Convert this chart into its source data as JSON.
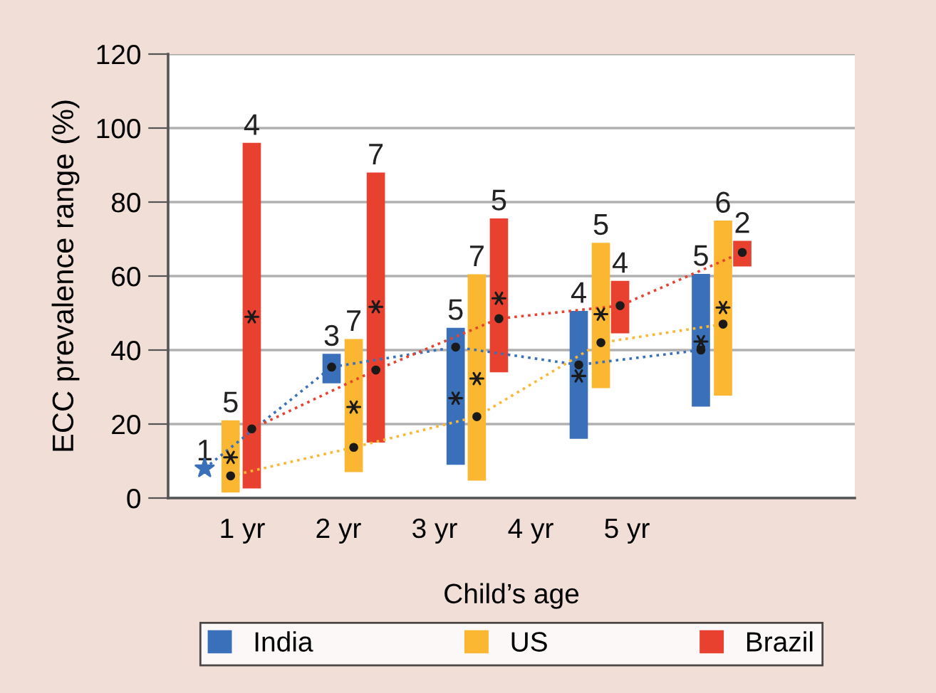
{
  "chart_data": {
    "type": "bar",
    "xlabel": "Child’s age",
    "ylabel": "ECC prevalence range (%)",
    "xlim": [
      0.23,
      7.37
    ],
    "xticks": [
      {
        "value": 1,
        "label": "1 yr"
      },
      {
        "value": 2,
        "label": "2 yr"
      },
      {
        "value": 3,
        "label": "3 yr"
      },
      {
        "value": 4,
        "label": "4 yr"
      },
      {
        "value": 5,
        "label": "5 yr"
      }
    ],
    "ylim": [
      0,
      120
    ],
    "yticks": [
      0,
      20,
      40,
      60,
      80,
      100,
      120
    ],
    "grid": "y",
    "legend": "bottom",
    "series": [
      {
        "name": "India",
        "color": "#3a70b9",
        "x": [
          1.93,
          3.22,
          4.5,
          5.77
        ],
        "base": [
          31,
          9,
          16,
          24.7
        ],
        "values": [
          8,
          37,
          34.6,
          35.9
        ]
      },
      {
        "name": "US",
        "color": "#fbb731",
        "x": [
          0.88,
          2.16,
          3.44,
          4.73,
          6.0
        ],
        "base": [
          1.5,
          7,
          4.7,
          29.7,
          27.7
        ],
        "values": [
          19.5,
          36,
          55.8,
          39.3,
          47.3
        ]
      },
      {
        "name": "Brazil",
        "color": "#e84130",
        "x": [
          1.1,
          2.39,
          3.67,
          4.93,
          6.2
        ],
        "base": [
          2.6,
          15,
          34,
          44.5,
          62.6
        ],
        "values": [
          93.4,
          73,
          41.6,
          14.2,
          6.9
        ]
      },
      {
        "type": "line",
        "color": "#3a70b9",
        "line_style": "dotted",
        "marker": "none",
        "x": [
          0.61,
          1.93,
          3.22,
          4.5,
          5.77
        ],
        "values": [
          8,
          35.4,
          40.8,
          36,
          40
        ]
      },
      {
        "type": "line",
        "color": "#fbb731",
        "line_style": "dotted",
        "marker": "none",
        "x": [
          0.88,
          2.16,
          3.44,
          4.73,
          6.0
        ],
        "values": [
          6,
          13.7,
          22,
          42,
          47
        ]
      },
      {
        "type": "line",
        "color": "#e84130",
        "line_style": "dotted",
        "marker": "none",
        "x": [
          1.1,
          2.39,
          3.67,
          4.93,
          6.2
        ],
        "values": [
          18.7,
          34.6,
          48.5,
          52,
          66.4
        ]
      },
      {
        "type": "scatter",
        "color": "#3a70b9",
        "marker": "star",
        "x": [
          0.61
        ],
        "values": [
          8
        ]
      },
      {
        "type": "scatter",
        "color": "#1a1a1a",
        "marker": "circle",
        "x": [
          1.93,
          3.22,
          4.5,
          5.77
        ],
        "values": [
          35.4,
          40.8,
          36,
          40
        ]
      },
      {
        "type": "scatter",
        "color": "#1a1a1a",
        "marker": "circle",
        "x": [
          0.88,
          2.16,
          3.44,
          4.73,
          6.0
        ],
        "values": [
          6,
          13.7,
          22,
          42,
          47
        ]
      },
      {
        "type": "scatter",
        "color": "#1a1a1a",
        "marker": "circle",
        "x": [
          1.1,
          2.39,
          3.67,
          4.93,
          6.2
        ],
        "values": [
          18.7,
          34.6,
          48.5,
          52,
          66.4
        ]
      },
      {
        "type": "scatter",
        "color": "#1a1a1a",
        "marker": "cross",
        "x": [
          3.22,
          4.5,
          5.77
        ],
        "values": [
          27,
          33,
          42.3
        ]
      },
      {
        "type": "scatter",
        "color": "#1a1a1a",
        "marker": "cross",
        "x": [
          0.88,
          2.16,
          3.44,
          4.73,
          6.0
        ],
        "values": [
          11,
          24.6,
          32.3,
          49.7,
          51.5
        ]
      },
      {
        "type": "scatter",
        "color": "#1a1a1a",
        "marker": "cross",
        "x": [
          1.1,
          2.39,
          3.67
        ],
        "values": [
          49,
          51.7,
          54
        ]
      }
    ],
    "annotations": [
      {
        "text": "1",
        "x": 0.61,
        "y": 8
      },
      {
        "text": "3",
        "x": 1.93,
        "y": 39
      },
      {
        "text": "5",
        "x": 3.22,
        "y": 46
      },
      {
        "text": "4",
        "x": 4.5,
        "y": 50.6
      },
      {
        "text": "5",
        "x": 5.77,
        "y": 60.6
      },
      {
        "text": "5",
        "x": 0.88,
        "y": 21
      },
      {
        "text": "7",
        "x": 2.16,
        "y": 43
      },
      {
        "text": "7",
        "x": 3.44,
        "y": 60.5
      },
      {
        "text": "5",
        "x": 4.73,
        "y": 69
      },
      {
        "text": "6",
        "x": 6.0,
        "y": 75
      },
      {
        "text": "4",
        "x": 1.1,
        "y": 96
      },
      {
        "text": "7",
        "x": 2.39,
        "y": 88
      },
      {
        "text": "5",
        "x": 3.67,
        "y": 75.6
      },
      {
        "text": "4",
        "x": 4.93,
        "y": 58.7
      },
      {
        "text": "2",
        "x": 6.2,
        "y": 69.5
      }
    ]
  }
}
